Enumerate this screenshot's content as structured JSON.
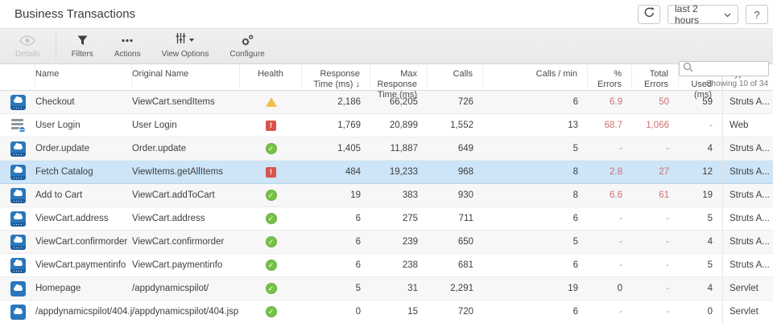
{
  "header": {
    "title": "Business Transactions",
    "time_range": "last 2 hours",
    "help_label": "?"
  },
  "toolbar": {
    "details_label": "Details",
    "filters_label": "Filters",
    "actions_label": "Actions",
    "view_options_label": "View Options",
    "configure_label": "Configure",
    "search_placeholder": "",
    "showing_text": "Showing 10 of 34"
  },
  "table": {
    "columns": {
      "name": "Name",
      "original_name": "Original Name",
      "health": "Health",
      "response_time": "Response\nTime (ms) ↓",
      "max_response_time": "Max Response\nTime (ms)",
      "calls": "Calls",
      "calls_per_min": "Calls / min",
      "pct_errors": "% Errors",
      "total_errors": "Total\nErrors",
      "cpu_used": "CPU Used\n(ms)",
      "type": "Type"
    },
    "sorted_by": "Response Time (ms)",
    "rows": [
      {
        "icon": "struts",
        "name": "Checkout",
        "original_name": "ViewCart.sendItems",
        "health": "warning",
        "response_time": "2,186",
        "max_response_time": "66,205",
        "calls": "726",
        "calls_per_min": "6",
        "pct_errors": "6.9",
        "pct_red": true,
        "total_errors": "50",
        "total_red": true,
        "cpu_used": "59",
        "type": "Struts A...",
        "selected": false
      },
      {
        "icon": "web",
        "name": "User Login",
        "original_name": "User Login",
        "health": "critical",
        "response_time": "1,769",
        "max_response_time": "20,899",
        "calls": "1,552",
        "calls_per_min": "13",
        "pct_errors": "68.7",
        "pct_red": true,
        "total_errors": "1,066",
        "total_red": true,
        "cpu_used": "-",
        "type": "Web",
        "selected": false
      },
      {
        "icon": "struts",
        "name": "Order.update",
        "original_name": "Order.update",
        "health": "normal",
        "response_time": "1,405",
        "max_response_time": "11,887",
        "calls": "649",
        "calls_per_min": "5",
        "pct_errors": "-",
        "pct_red": false,
        "total_errors": "-",
        "total_red": false,
        "cpu_used": "4",
        "type": "Struts A...",
        "selected": false
      },
      {
        "icon": "struts",
        "name": "Fetch Catalog",
        "original_name": "ViewItems.getAllItems",
        "health": "critical",
        "response_time": "484",
        "max_response_time": "19,233",
        "calls": "968",
        "calls_per_min": "8",
        "pct_errors": "2.8",
        "pct_red": true,
        "total_errors": "27",
        "total_red": true,
        "cpu_used": "12",
        "type": "Struts A...",
        "selected": true
      },
      {
        "icon": "struts",
        "name": "Add to Cart",
        "original_name": "ViewCart.addToCart",
        "health": "normal",
        "response_time": "19",
        "max_response_time": "383",
        "calls": "930",
        "calls_per_min": "8",
        "pct_errors": "6.6",
        "pct_red": true,
        "total_errors": "61",
        "total_red": true,
        "cpu_used": "19",
        "type": "Struts A...",
        "selected": false
      },
      {
        "icon": "struts",
        "name": "ViewCart.address",
        "original_name": "ViewCart.address",
        "health": "normal",
        "response_time": "6",
        "max_response_time": "275",
        "calls": "711",
        "calls_per_min": "6",
        "pct_errors": "-",
        "pct_red": false,
        "total_errors": "-",
        "total_red": false,
        "cpu_used": "5",
        "type": "Struts A...",
        "selected": false
      },
      {
        "icon": "struts",
        "name": "ViewCart.confirmorder",
        "original_name": "ViewCart.confirmorder",
        "health": "normal",
        "response_time": "6",
        "max_response_time": "239",
        "calls": "650",
        "calls_per_min": "5",
        "pct_errors": "-",
        "pct_red": false,
        "total_errors": "-",
        "total_red": false,
        "cpu_used": "4",
        "type": "Struts A...",
        "selected": false
      },
      {
        "icon": "struts",
        "name": "ViewCart.paymentinfo",
        "original_name": "ViewCart.paymentinfo",
        "health": "normal",
        "response_time": "6",
        "max_response_time": "238",
        "calls": "681",
        "calls_per_min": "6",
        "pct_errors": "-",
        "pct_red": false,
        "total_errors": "-",
        "total_red": false,
        "cpu_used": "5",
        "type": "Struts A...",
        "selected": false
      },
      {
        "icon": "servlet",
        "name": "Homepage",
        "original_name": "/appdynamicspilot/",
        "health": "normal",
        "response_time": "5",
        "max_response_time": "31",
        "calls": "2,291",
        "calls_per_min": "19",
        "pct_errors": "0",
        "pct_red": false,
        "total_errors": "-",
        "total_red": false,
        "cpu_used": "4",
        "type": "Servlet",
        "selected": false
      },
      {
        "icon": "servlet",
        "name": "/appdynamicspilot/404.jsp",
        "original_name": "/appdynamicspilot/404.jsp",
        "health": "normal",
        "response_time": "0",
        "max_response_time": "15",
        "calls": "720",
        "calls_per_min": "6",
        "pct_errors": "-",
        "pct_red": false,
        "total_errors": "-",
        "total_red": false,
        "cpu_used": "0",
        "type": "Servlet",
        "selected": false
      }
    ]
  },
  "colors": {
    "accent_blue": "#2a77bd",
    "selected_row": "#cde5f7",
    "error_red": "#cf7070",
    "health_ok_green": "#77c14a",
    "health_warning_amber": "#f0bf4e",
    "health_critical_red": "#d9534f"
  }
}
